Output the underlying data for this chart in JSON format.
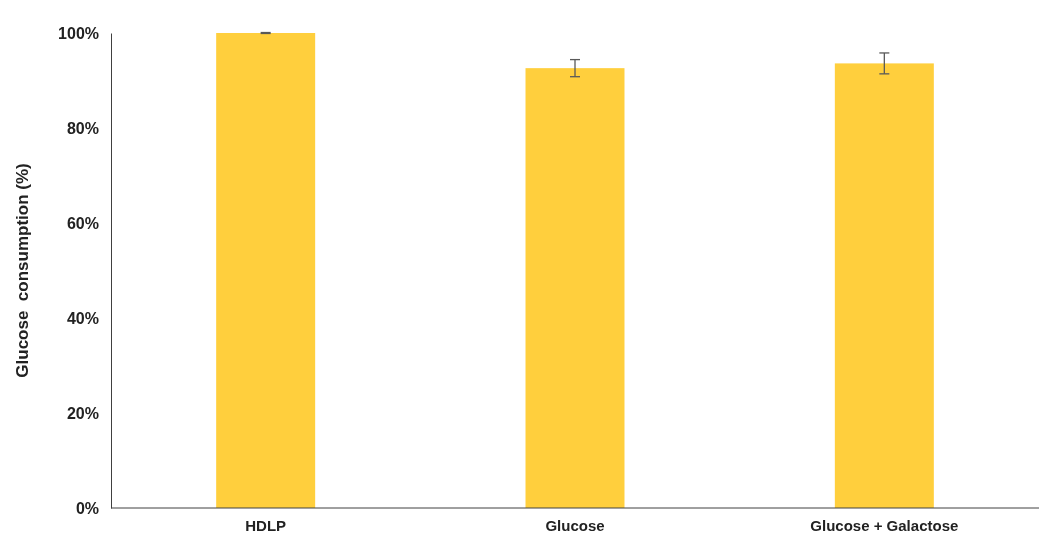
{
  "chart_data": {
    "type": "bar",
    "ylabel": "Glucose  consumption (%)",
    "categories": [
      "HDLP",
      "Glucose",
      "Glucose + Galactose"
    ],
    "values": [
      100,
      92.6,
      93.6
    ],
    "errors": [
      0.1,
      1.8,
      2.2
    ],
    "color": "#ffcf3d",
    "ylim": [
      0,
      100
    ],
    "yticks": [
      {
        "value": 0,
        "label": "0%"
      },
      {
        "value": 20,
        "label": "20%"
      },
      {
        "value": 40,
        "label": "40%"
      },
      {
        "value": 60,
        "label": "60%"
      },
      {
        "value": 80,
        "label": "80%"
      },
      {
        "value": 100,
        "label": "100%"
      }
    ],
    "grid": false
  }
}
